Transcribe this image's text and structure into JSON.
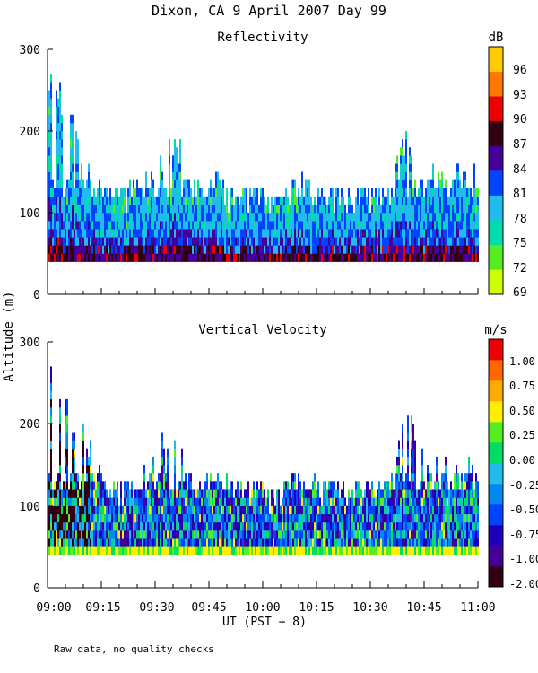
{
  "chart_data": [
    {
      "type": "heatmap",
      "title": "Dixon, CA  9 April 2007  Day  99",
      "subtitle": "Reflectivity",
      "xlabel": "UT  (PST + 8)",
      "ylabel": "Altitude (m)",
      "ylim": [
        0,
        300
      ],
      "yticks": [
        "0",
        "100",
        "200",
        "300"
      ],
      "xlim": [
        "09:00",
        "11:00"
      ],
      "colorbar": {
        "unit": "dB",
        "labels": [
          "69",
          "72",
          "75",
          "78",
          "81",
          "84",
          "87",
          "90",
          "93",
          "96"
        ],
        "colors": [
          "#ccff00",
          "#55ee22",
          "#00ddaa",
          "#22bbee",
          "#0044ff",
          "#440099",
          "#330011",
          "#ee0000",
          "#ff7700",
          "#ffcc00"
        ]
      },
      "min_altitude": 40,
      "top_altitude_profile_minutes": [
        0,
        5,
        10,
        15,
        20,
        25,
        30,
        35,
        40,
        45,
        50,
        55,
        60,
        65,
        70,
        75,
        80,
        85,
        90,
        95,
        100,
        105,
        110,
        115,
        120
      ],
      "top_altitude_profile_values": [
        280,
        240,
        165,
        130,
        120,
        140,
        150,
        200,
        150,
        150,
        130,
        130,
        120,
        120,
        150,
        130,
        130,
        130,
        130,
        130,
        200,
        160,
        155,
        160,
        150
      ]
    },
    {
      "type": "heatmap",
      "subtitle": "Vertical Velocity",
      "xlabel": "UT  (PST + 8)",
      "ylabel": "Altitude (m)",
      "ylim": [
        0,
        300
      ],
      "yticks": [
        "0",
        "100",
        "200",
        "300"
      ],
      "xlim": [
        "09:00",
        "11:00"
      ],
      "xticks": [
        "09:00",
        "09:15",
        "09:30",
        "09:45",
        "10:00",
        "10:15",
        "10:30",
        "10:45",
        "11:00"
      ],
      "colorbar": {
        "unit": "m/s",
        "labels": [
          "-2.00",
          "-1.00",
          "-0.75",
          "-0.50",
          "-0.25",
          "0.00",
          "0.25",
          "0.50",
          "0.75",
          "1.00"
        ],
        "colors": [
          "#330011",
          "#440099",
          "#2200bb",
          "#0044ff",
          "#0088ee",
          "#22bbee",
          "#00dd66",
          "#55ee22",
          "#ffee00",
          "#ffaa00",
          "#ff6600",
          "#ee0000"
        ]
      },
      "min_altitude": 40,
      "top_altitude_profile_minutes": [
        0,
        5,
        10,
        15,
        20,
        25,
        30,
        35,
        40,
        45,
        50,
        55,
        60,
        65,
        70,
        75,
        80,
        85,
        90,
        95,
        100,
        105,
        110,
        115,
        120
      ],
      "top_altitude_profile_values": [
        280,
        230,
        190,
        135,
        120,
        140,
        170,
        200,
        150,
        150,
        130,
        130,
        120,
        120,
        160,
        130,
        130,
        130,
        130,
        130,
        215,
        160,
        150,
        170,
        160
      ]
    }
  ],
  "footer_note": "Raw data, no quality checks"
}
